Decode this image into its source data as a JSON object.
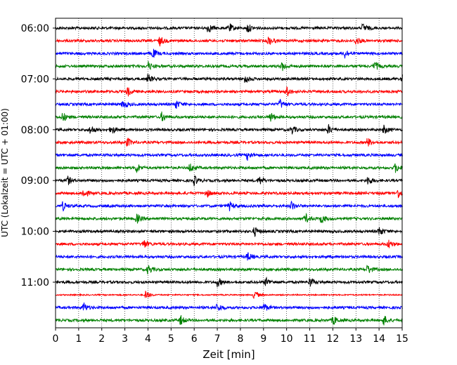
{
  "chart_data": {
    "type": "line",
    "title": "",
    "xlabel": "Zeit  [min]",
    "ylabel": "UTC (Lokalzeit = UTC + 01:00)",
    "xlim": [
      0,
      15
    ],
    "x_ticks": [
      "0",
      "1",
      "2",
      "3",
      "4",
      "5",
      "6",
      "7",
      "8",
      "9",
      "10",
      "11",
      "12",
      "13",
      "14",
      "15"
    ],
    "y_ticks": [
      {
        "label": "06:00",
        "row": 0
      },
      {
        "label": "07:00",
        "row": 4
      },
      {
        "label": "08:00",
        "row": 8
      },
      {
        "label": "09:00",
        "row": 12
      },
      {
        "label": "10:00",
        "row": 16
      },
      {
        "label": "11:00",
        "row": 20
      }
    ],
    "grid": "vertical dotted at each minute",
    "row_interval_minutes": 15,
    "row_colors": [
      "#000000",
      "#ff0000",
      "#0000ff",
      "#008000"
    ],
    "rows": [
      {
        "start": "06:00",
        "color": "#000000",
        "events_min": [
          6.6,
          7.5,
          8.3,
          13.3
        ],
        "quiet": false
      },
      {
        "start": "06:15",
        "color": "#ff0000",
        "events_min": [
          4.5,
          9.2,
          13.0
        ],
        "quiet": false
      },
      {
        "start": "06:30",
        "color": "#0000ff",
        "events_min": [
          4.2,
          12.5
        ],
        "quiet": false
      },
      {
        "start": "06:45",
        "color": "#008000",
        "events_min": [
          4.0,
          9.8,
          13.8
        ],
        "quiet": false
      },
      {
        "start": "07:00",
        "color": "#000000",
        "events_min": [
          4.0,
          8.2,
          15.0
        ],
        "quiet": false
      },
      {
        "start": "07:15",
        "color": "#ff0000",
        "events_min": [
          3.1,
          10.0
        ],
        "quiet": false
      },
      {
        "start": "07:30",
        "color": "#0000ff",
        "events_min": [
          2.9,
          5.2,
          9.7
        ],
        "quiet": false
      },
      {
        "start": "07:45",
        "color": "#008000",
        "events_min": [
          0.3,
          4.6,
          9.3
        ],
        "quiet": false
      },
      {
        "start": "08:00",
        "color": "#000000",
        "events_min": [
          1.5,
          2.4,
          10.2,
          11.8,
          14.2
        ],
        "quiet": false
      },
      {
        "start": "08:15",
        "color": "#ff0000",
        "events_min": [
          3.1,
          13.5
        ],
        "quiet": false
      },
      {
        "start": "08:30",
        "color": "#0000ff",
        "events_min": [
          8.3
        ],
        "quiet": false
      },
      {
        "start": "08:45",
        "color": "#008000",
        "events_min": [
          3.5,
          5.8,
          14.7
        ],
        "quiet": false
      },
      {
        "start": "09:00",
        "color": "#000000",
        "events_min": [
          0.5,
          6.0,
          8.8,
          13.5
        ],
        "quiet": false
      },
      {
        "start": "09:15",
        "color": "#ff0000",
        "events_min": [
          1.2,
          6.5,
          14.8
        ],
        "quiet": false
      },
      {
        "start": "09:30",
        "color": "#0000ff",
        "events_min": [
          0.3,
          7.5,
          10.2
        ],
        "quiet": false
      },
      {
        "start": "09:45",
        "color": "#008000",
        "events_min": [
          3.5,
          10.8,
          11.5
        ],
        "quiet": false
      },
      {
        "start": "10:00",
        "color": "#000000",
        "events_min": [
          8.6,
          14.0
        ],
        "quiet": false
      },
      {
        "start": "10:15",
        "color": "#ff0000",
        "events_min": [
          3.8,
          14.4
        ],
        "quiet": false
      },
      {
        "start": "10:30",
        "color": "#0000ff",
        "events_min": [
          8.3
        ],
        "quiet": false
      },
      {
        "start": "10:45",
        "color": "#008000",
        "events_min": [
          4.0,
          13.5
        ],
        "quiet": false
      },
      {
        "start": "11:00",
        "color": "#000000",
        "events_min": [
          7.0,
          9.1,
          11.0
        ],
        "quiet": false
      },
      {
        "start": "11:15",
        "color": "#ff0000",
        "events_min": [
          3.9,
          8.6
        ],
        "quiet": true
      },
      {
        "start": "11:30",
        "color": "#0000ff",
        "events_min": [
          1.2,
          7.0,
          9.0
        ],
        "quiet": false
      },
      {
        "start": "11:45",
        "color": "#008000",
        "events_min": [
          5.4,
          12.0,
          14.2
        ],
        "quiet": false
      }
    ]
  }
}
